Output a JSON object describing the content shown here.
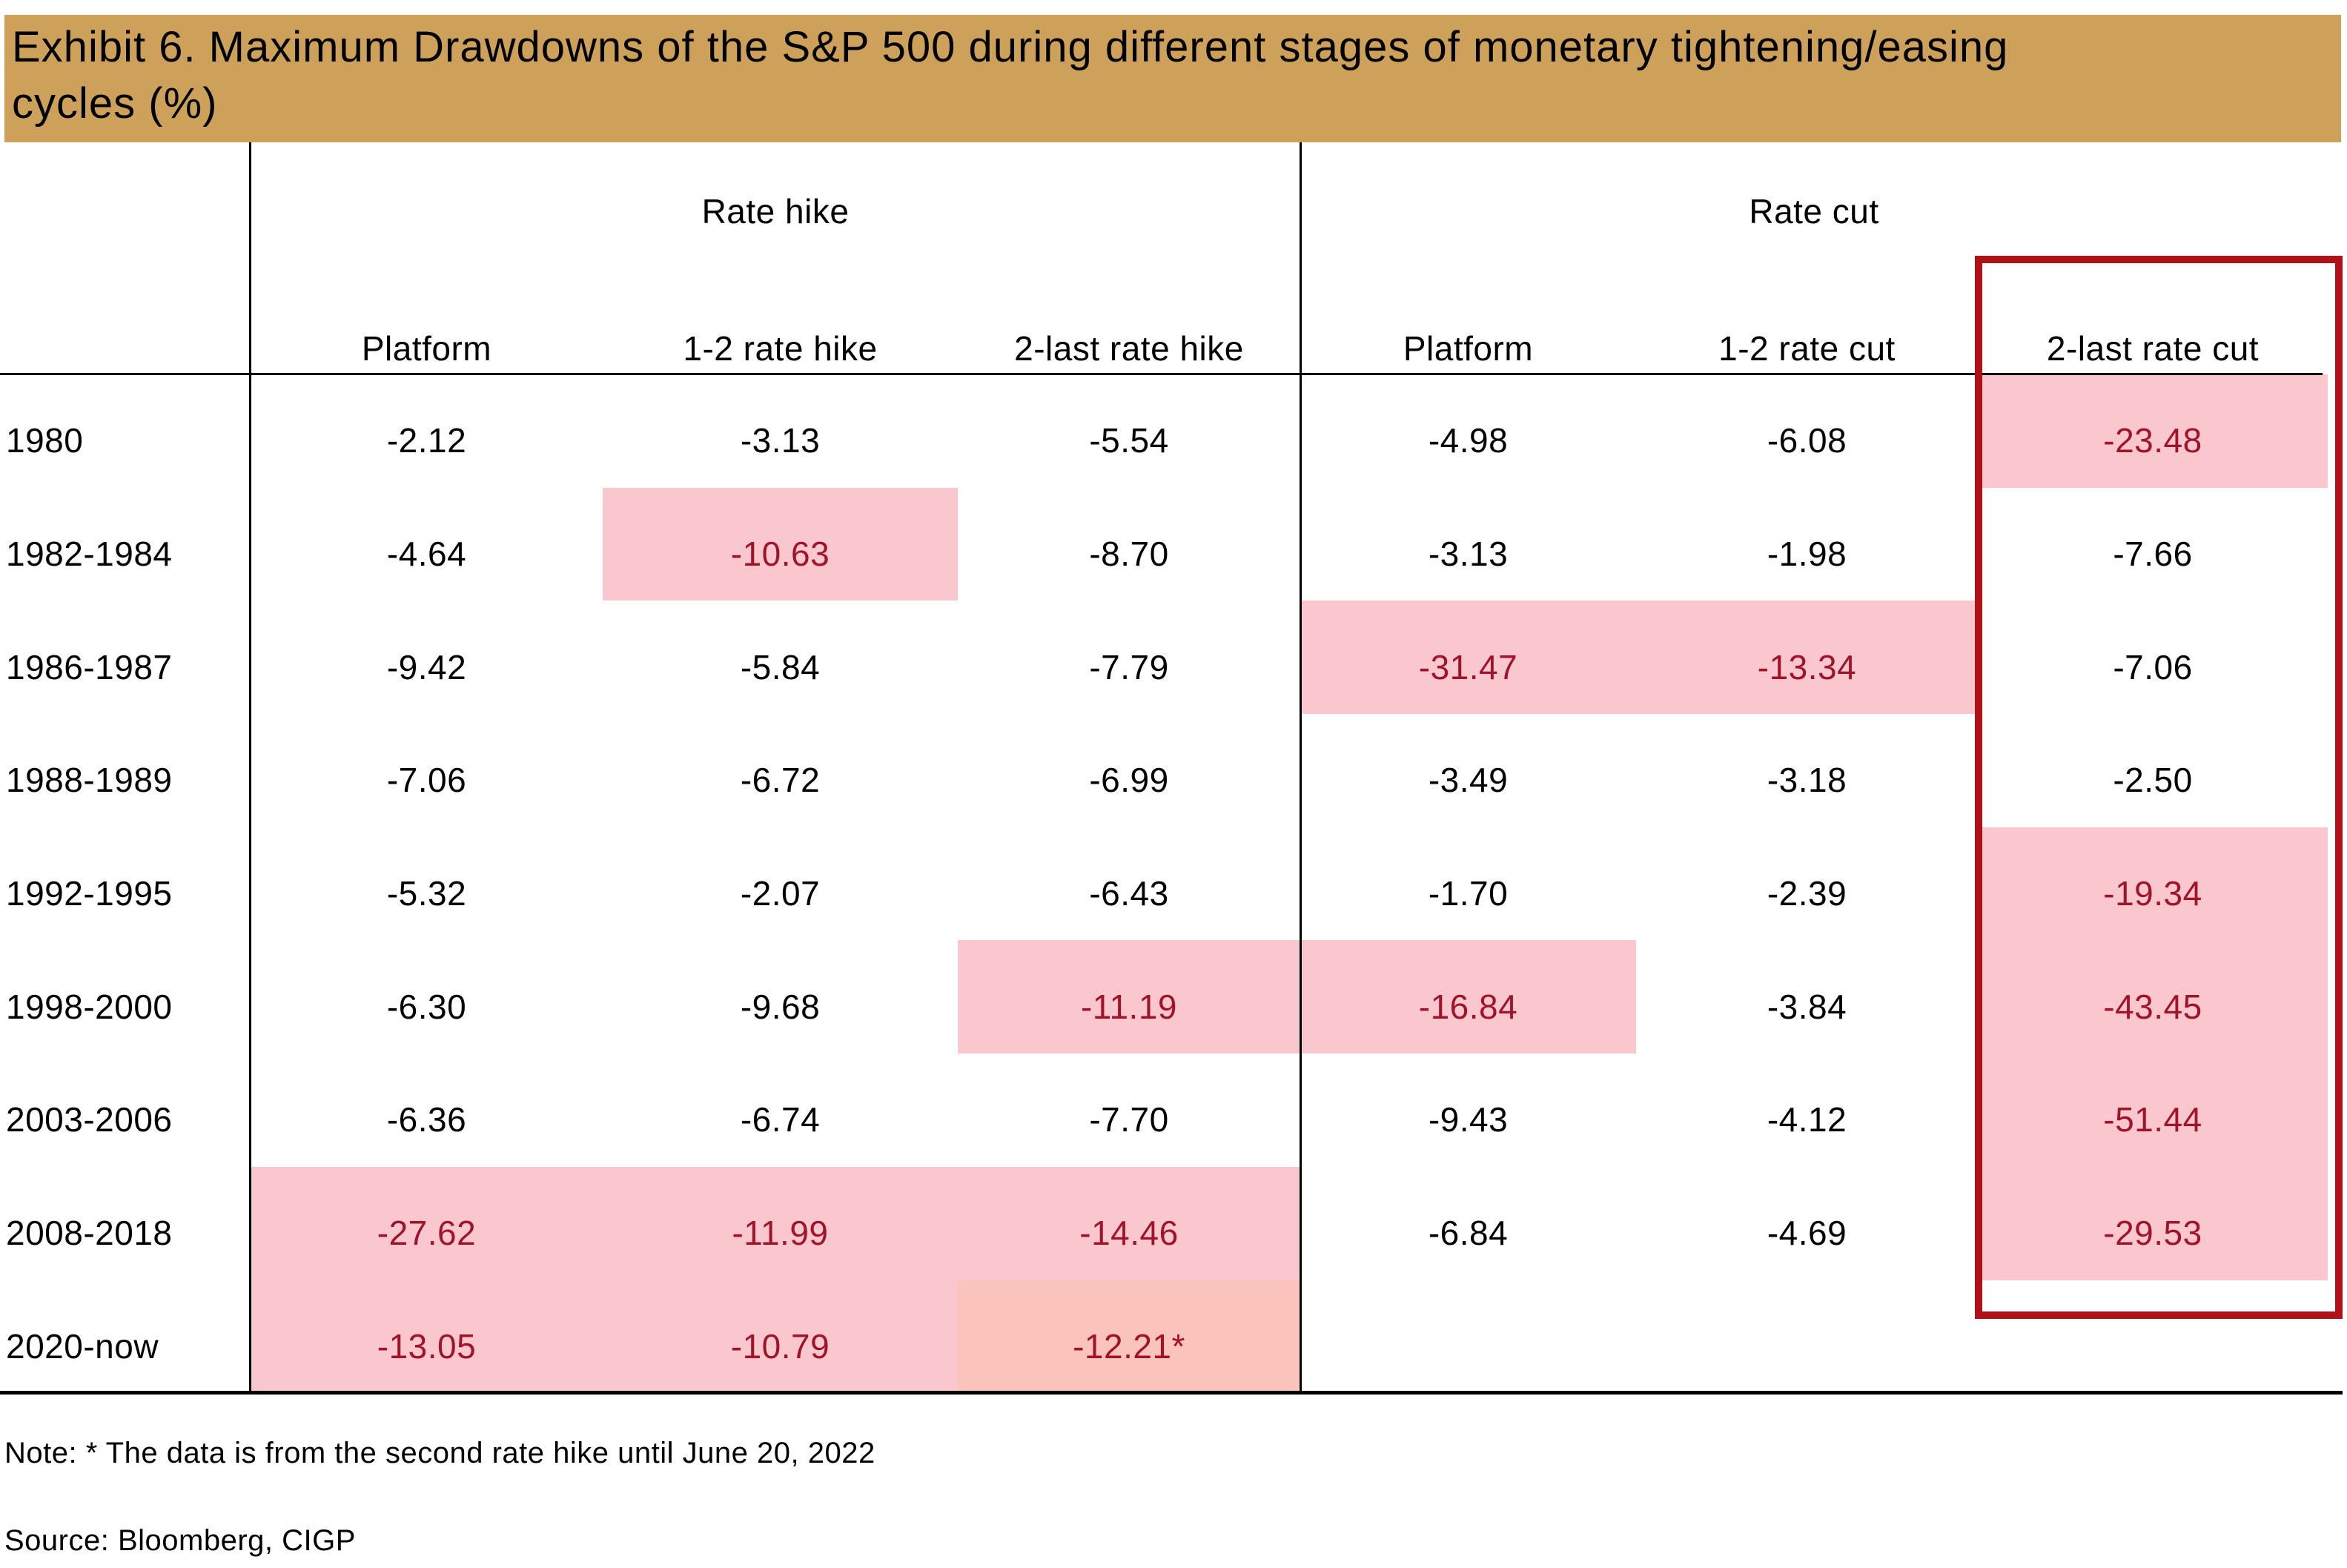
{
  "title": {
    "line1": "Exhibit 6. Maximum Drawdowns of the S&P 500 during different stages of monetary tightening/easing",
    "line2": "cycles (%)"
  },
  "table": {
    "group_headers": {
      "rate_hike": "Rate hike",
      "rate_cut": "Rate cut"
    },
    "sub_headers": [
      "Platform",
      "1-2 rate hike",
      "2-last rate hike",
      "Platform",
      "1-2 rate cut",
      "2-last rate cut"
    ],
    "rows": [
      {
        "label": "1980",
        "cells": [
          {
            "v": "-2.12"
          },
          {
            "v": "-3.13"
          },
          {
            "v": "-5.54"
          },
          {
            "v": "-4.98"
          },
          {
            "v": "-6.08"
          },
          {
            "v": "-23.48",
            "h": 1
          }
        ]
      },
      {
        "label": "1982-1984",
        "cells": [
          {
            "v": "-4.64"
          },
          {
            "v": "-10.63",
            "h": 1
          },
          {
            "v": "-8.70"
          },
          {
            "v": "-3.13"
          },
          {
            "v": "-1.98"
          },
          {
            "v": "-7.66"
          }
        ]
      },
      {
        "label": "1986-1987",
        "cells": [
          {
            "v": "-9.42"
          },
          {
            "v": "-5.84"
          },
          {
            "v": "-7.79"
          },
          {
            "v": "-31.47",
            "h": 1
          },
          {
            "v": "-13.34",
            "h": 1
          },
          {
            "v": "-7.06"
          }
        ]
      },
      {
        "label": "1988-1989",
        "cells": [
          {
            "v": "-7.06"
          },
          {
            "v": "-6.72"
          },
          {
            "v": "-6.99"
          },
          {
            "v": "-3.49"
          },
          {
            "v": "-3.18"
          },
          {
            "v": "-2.50"
          }
        ]
      },
      {
        "label": "1992-1995",
        "cells": [
          {
            "v": "-5.32"
          },
          {
            "v": "-2.07"
          },
          {
            "v": "-6.43"
          },
          {
            "v": "-1.70"
          },
          {
            "v": "-2.39"
          },
          {
            "v": "-19.34",
            "h": 1
          }
        ]
      },
      {
        "label": "1998-2000",
        "cells": [
          {
            "v": "-6.30"
          },
          {
            "v": "-9.68"
          },
          {
            "v": "-11.19",
            "h": 1
          },
          {
            "v": "-16.84",
            "h": 1
          },
          {
            "v": "-3.84"
          },
          {
            "v": "-43.45",
            "h": 1
          }
        ]
      },
      {
        "label": "2003-2006",
        "cells": [
          {
            "v": "-6.36"
          },
          {
            "v": "-6.74"
          },
          {
            "v": "-7.70"
          },
          {
            "v": "-9.43"
          },
          {
            "v": "-4.12"
          },
          {
            "v": "-51.44",
            "h": 1
          }
        ]
      },
      {
        "label": "2008-2018",
        "cells": [
          {
            "v": "-27.62",
            "h": 1
          },
          {
            "v": "-11.99",
            "h": 1
          },
          {
            "v": "-14.46",
            "h": 1
          },
          {
            "v": "-6.84"
          },
          {
            "v": "-4.69"
          },
          {
            "v": "-29.53",
            "h": 1
          }
        ]
      },
      {
        "label": "2020-now",
        "cells": [
          {
            "v": "-13.05",
            "h": 1
          },
          {
            "v": "-10.79",
            "h": 1
          },
          {
            "v": "-12.21*",
            "h": 2
          },
          {
            "v": ""
          },
          {
            "v": ""
          },
          {
            "v": ""
          }
        ]
      }
    ]
  },
  "emphasis_box": {
    "column": "2-last rate cut"
  },
  "notes": {
    "note": "Note: * The data is from the second rate hike until June 20, 2022",
    "source": "Source: Bloomberg, CIGP"
  },
  "colors": {
    "title_bg": "#CEA15A",
    "highlight_bg": "#FAC7CE",
    "highlight_bg_alt": "#FAC4BC",
    "highlight_text": "#A11328",
    "box_border": "#B01116"
  },
  "chart_data": {
    "type": "table",
    "title": "Exhibit 6. Maximum Drawdowns of the S&P 500 during different stages of monetary tightening/easing cycles (%)",
    "column_groups": [
      {
        "label": "Rate hike",
        "columns": [
          "Platform",
          "1-2 rate hike",
          "2-last rate hike"
        ]
      },
      {
        "label": "Rate cut",
        "columns": [
          "Platform",
          "1-2 rate cut",
          "2-last rate cut"
        ]
      }
    ],
    "rows": [
      [
        "1980",
        -2.12,
        -3.13,
        -5.54,
        -4.98,
        -6.08,
        -23.48
      ],
      [
        "1982-1984",
        -4.64,
        -10.63,
        -8.7,
        -3.13,
        -1.98,
        -7.66
      ],
      [
        "1986-1987",
        -9.42,
        -5.84,
        -7.79,
        -31.47,
        -13.34,
        -7.06
      ],
      [
        "1988-1989",
        -7.06,
        -6.72,
        -6.99,
        -3.49,
        -3.18,
        -2.5
      ],
      [
        "1992-1995",
        -5.32,
        -2.07,
        -6.43,
        -1.7,
        -2.39,
        -19.34
      ],
      [
        "1998-2000",
        -6.3,
        -9.68,
        -11.19,
        -16.84,
        -3.84,
        -43.45
      ],
      [
        "2003-2006",
        -6.36,
        -6.74,
        -7.7,
        -9.43,
        -4.12,
        -51.44
      ],
      [
        "2008-2018",
        -27.62,
        -11.99,
        -14.46,
        -6.84,
        -4.69,
        -29.53
      ],
      [
        "2020-now",
        -13.05,
        -10.79,
        -12.21,
        null,
        null,
        null
      ]
    ],
    "highlighted_cells_pink": [
      [
        0,
        6
      ],
      [
        1,
        2
      ],
      [
        2,
        4
      ],
      [
        2,
        5
      ],
      [
        4,
        6
      ],
      [
        5,
        3
      ],
      [
        5,
        4
      ],
      [
        5,
        6
      ],
      [
        6,
        6
      ],
      [
        7,
        1
      ],
      [
        7,
        2
      ],
      [
        7,
        3
      ],
      [
        7,
        6
      ],
      [
        8,
        1
      ],
      [
        8,
        2
      ],
      [
        8,
        3
      ]
    ],
    "red_box_column": "2-last rate cut",
    "footnote": "Note: * The data is from the second rate hike until June 20, 2022",
    "source": "Source: Bloomberg, CIGP"
  }
}
